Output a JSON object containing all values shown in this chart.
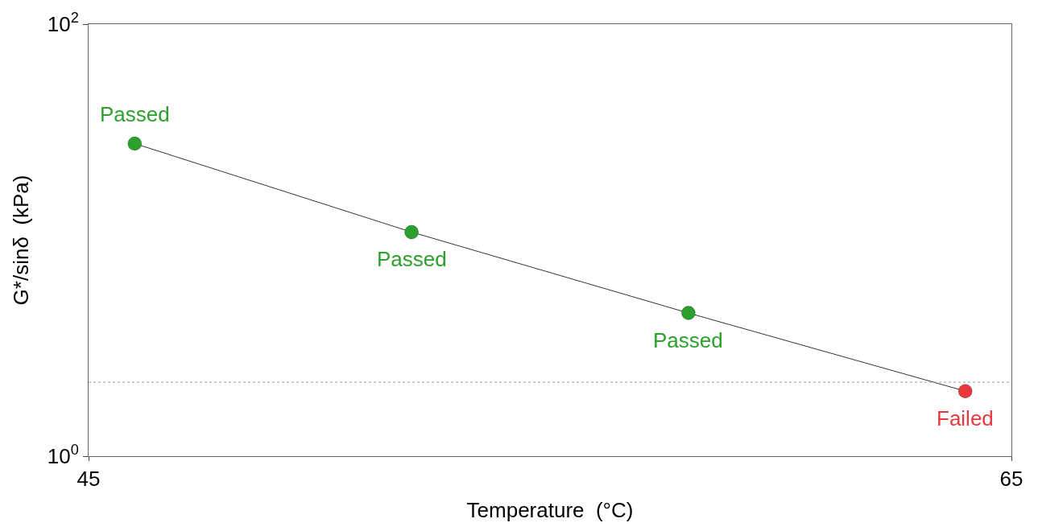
{
  "chart_data": {
    "type": "line",
    "xlabel": "Temperature  (°C)",
    "ylabel": "G*/sinδ  (kPa)",
    "x": [
      46,
      52,
      58,
      64
    ],
    "series": [
      {
        "values": [
          28,
          10.9,
          4.6,
          2.0
        ],
        "colors": [
          "#2ca02c",
          "#2ca02c",
          "#2ca02c",
          "#e8383d"
        ],
        "color": "#000000"
      }
    ],
    "marker": "circle",
    "log": "y",
    "xlim": [
      45,
      65
    ],
    "xticks": [
      45,
      65
    ],
    "ylim": [
      1,
      100
    ],
    "yticks": [
      {
        "value": 1,
        "label": "10$^{0}$"
      },
      {
        "value": 100,
        "label": "10$^{2}$"
      }
    ],
    "ref_lines": [
      {
        "axis": "y",
        "value": 2.2,
        "color": "#999999",
        "line_style": "dotted"
      }
    ],
    "annotations": [
      {
        "text": "Passed",
        "x": 46,
        "y": 28
      },
      {
        "text": "Passed",
        "x": 52,
        "y": 10.9
      },
      {
        "text": "Passed",
        "x": 58,
        "y": 4.6
      },
      {
        "text": "Failed",
        "x": 64,
        "y": 2.0
      }
    ]
  }
}
